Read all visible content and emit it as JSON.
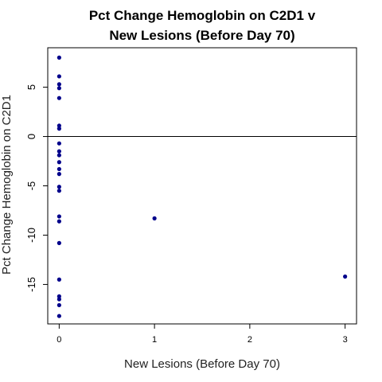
{
  "chart_data": {
    "type": "scatter",
    "title_line1": "Pct Change Hemoglobin on C2D1 v",
    "title_line2": "New Lesions (Before Day 70)",
    "xlabel": "New Lesions (Before Day 70)",
    "ylabel": "Pct Change Hemoglobin on C2D1",
    "xlim": [
      -0.12,
      3.12
    ],
    "ylim": [
      -19,
      9
    ],
    "xticks": [
      0,
      1,
      2,
      3
    ],
    "xtick_labels": [
      "0",
      "1",
      "2",
      "3"
    ],
    "yticks": [
      -15,
      -10,
      -5,
      0,
      5
    ],
    "ytick_labels": [
      "-15",
      "-10",
      "-5",
      "0",
      "5"
    ],
    "reference_line_y": 0,
    "point_color": "#00008B",
    "points": [
      {
        "x": 0,
        "y": 8.0
      },
      {
        "x": 0,
        "y": 6.1
      },
      {
        "x": 0,
        "y": 5.3
      },
      {
        "x": 0,
        "y": 4.9
      },
      {
        "x": 0,
        "y": 3.9
      },
      {
        "x": 0,
        "y": 1.1
      },
      {
        "x": 0,
        "y": 0.8
      },
      {
        "x": 0,
        "y": -0.7
      },
      {
        "x": 0,
        "y": -1.5
      },
      {
        "x": 0,
        "y": -1.9
      },
      {
        "x": 0,
        "y": -2.6
      },
      {
        "x": 0,
        "y": -3.3
      },
      {
        "x": 0,
        "y": -3.8
      },
      {
        "x": 0,
        "y": -5.1
      },
      {
        "x": 0,
        "y": -5.5
      },
      {
        "x": 0,
        "y": -8.1
      },
      {
        "x": 0,
        "y": -8.6
      },
      {
        "x": 0,
        "y": -10.8
      },
      {
        "x": 0,
        "y": -14.5
      },
      {
        "x": 0,
        "y": -16.2
      },
      {
        "x": 0,
        "y": -16.5
      },
      {
        "x": 0,
        "y": -17.1
      },
      {
        "x": 0,
        "y": -18.2
      },
      {
        "x": 1,
        "y": -8.3
      },
      {
        "x": 3,
        "y": -14.2
      }
    ]
  }
}
